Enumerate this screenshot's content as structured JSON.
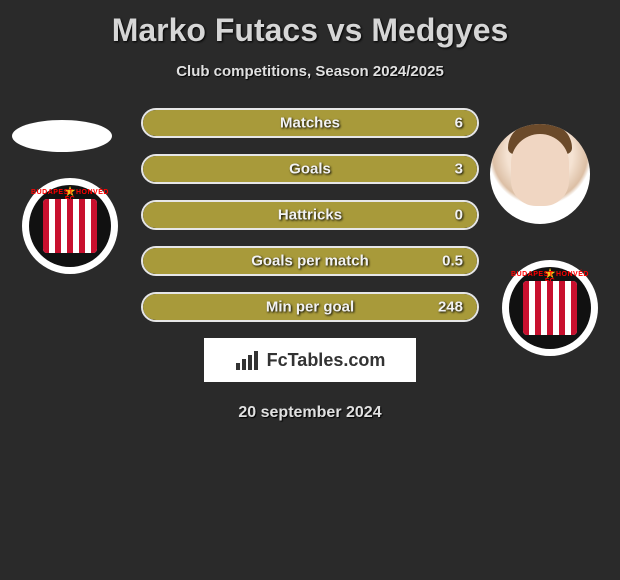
{
  "title": "Marko Futacs vs Medgyes",
  "subtitle": "Club competitions, Season 2024/2025",
  "date": "20 september 2024",
  "logo_text": "FcTables.com",
  "colors": {
    "bar_fill": "#a89a3a",
    "bar_border": "#e6e6e6",
    "background": "#2a2a2a",
    "crest_stripe_red": "#c8102e",
    "crest_black": "#111111",
    "star": "#f5c518"
  },
  "stats": [
    {
      "label": "Matches",
      "value": "6",
      "fill_pct": 100
    },
    {
      "label": "Goals",
      "value": "3",
      "fill_pct": 100
    },
    {
      "label": "Hattricks",
      "value": "0",
      "fill_pct": 100
    },
    {
      "label": "Goals per match",
      "value": "0.5",
      "fill_pct": 100
    },
    {
      "label": "Min per goal",
      "value": "248",
      "fill_pct": 100
    }
  ],
  "players": {
    "left_name": "Marko Futacs",
    "right_name": "Medgyes"
  },
  "club": {
    "name": "Budapest Honvéd FC",
    "crest_top_text": "BUDAPEST HONVÉD FC"
  }
}
